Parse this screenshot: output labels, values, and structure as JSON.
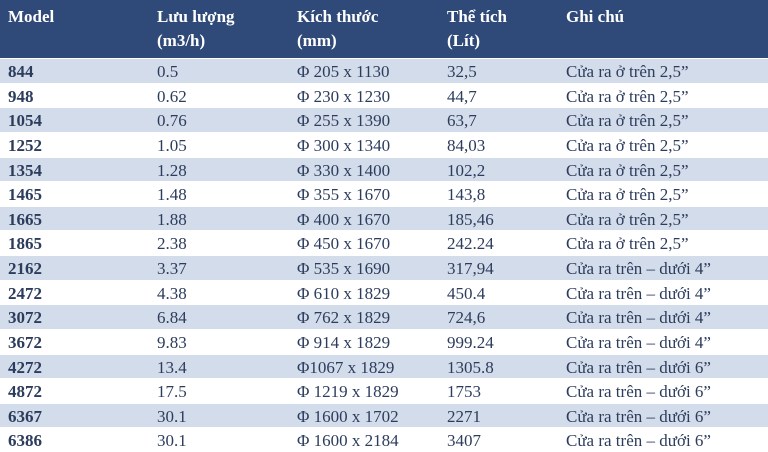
{
  "table": {
    "header": [
      [
        "Model"
      ],
      [
        "Lưu lượng",
        "(m3/h)"
      ],
      [
        "Kích thước",
        "(mm)"
      ],
      [
        "Thể tích",
        "(Lít)"
      ],
      [
        "Ghi chú"
      ]
    ],
    "rows": [
      [
        "844",
        "0.5",
        "Φ 205 x 1130",
        "32,5",
        "Cửa ra ở trên 2,5”"
      ],
      [
        "948",
        "0.62",
        "Φ 230 x 1230",
        "44,7",
        "Cửa ra ở trên 2,5”"
      ],
      [
        "1054",
        "0.76",
        "Φ 255 x 1390",
        "63,7",
        "Cửa ra ở trên 2,5”"
      ],
      [
        "1252",
        "1.05",
        "Φ 300 x 1340",
        "84,03",
        "Cửa ra ở trên 2,5”"
      ],
      [
        "1354",
        "1.28",
        "Φ 330 x 1400",
        "102,2",
        "Cửa ra ở trên 2,5”"
      ],
      [
        "1465",
        "1.48",
        "Φ 355 x 1670",
        "143,8",
        "Cửa ra ở trên 2,5”"
      ],
      [
        "1665",
        "1.88",
        "Φ 400 x 1670",
        "185,46",
        "Cửa ra ở trên 2,5”"
      ],
      [
        "1865",
        "2.38",
        "Φ 450 x 1670",
        "242.24",
        "Cửa ra ở trên 2,5”"
      ],
      [
        "2162",
        "3.37",
        "Φ 535 x 1690",
        "317,94",
        "Cửa ra trên – dưới 4”"
      ],
      [
        "2472",
        "4.38",
        "Φ 610 x 1829",
        "450.4",
        "Cửa ra trên – dưới 4”"
      ],
      [
        "3072",
        "6.84",
        "Φ 762 x 1829",
        "724,6",
        "Cửa ra trên – dưới 4”"
      ],
      [
        "3672",
        "9.83",
        "Φ 914 x 1829",
        "999.24",
        "Cửa ra trên – dưới 4”"
      ],
      [
        "4272",
        "13.4",
        "Φ1067 x 1829",
        "1305.8",
        "Cửa ra trên – dưới 6”"
      ],
      [
        "4872",
        "17.5",
        "Φ 1219 x 1829",
        "1753",
        "Cửa ra trên – dưới 6”"
      ],
      [
        "6367",
        "30.1",
        "Φ 1600 x 1702",
        "2271",
        "Cửa ra trên – dưới 6”"
      ],
      [
        "6386",
        "30.1",
        "Φ 1600 x 2184",
        "3407",
        "Cửa ra trên – dưới 6”"
      ]
    ]
  }
}
